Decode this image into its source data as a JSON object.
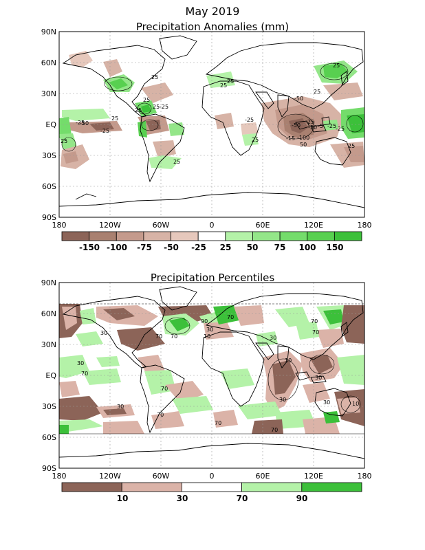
{
  "header": {
    "title": "May 2019"
  },
  "panels": [
    {
      "title": "Precipitation Anomalies (mm)",
      "lat_labels": [
        "90N",
        "60N",
        "30N",
        "EQ",
        "30S",
        "60S",
        "90S"
      ],
      "lon_labels": [
        "180",
        "120W",
        "60W",
        "0",
        "60E",
        "120E",
        "180"
      ],
      "colorbar": {
        "colors": [
          "#8c6458",
          "#a98070",
          "#c49a8c",
          "#d7b3a6",
          "#e6c8bc",
          "#ffffff",
          "#b4f2a8",
          "#94e689",
          "#74dc6b",
          "#58d050",
          "#3cc03a"
        ],
        "labels": [
          "-150",
          "-100",
          "-75",
          "-50",
          "-25",
          "25",
          "50",
          "75",
          "100",
          "150"
        ]
      },
      "contour_labels": [
        "25",
        "25",
        "25",
        "-25",
        "25",
        "-25",
        "25",
        "25",
        "-50",
        "-25",
        "25",
        "25",
        "25",
        "-50",
        "-25",
        "25",
        "-50",
        "-25",
        "-50",
        "-5",
        "-25",
        "-15",
        "-100",
        "50",
        "25",
        "25",
        "-25",
        "25"
      ]
    },
    {
      "title": "Precipitation Percentiles",
      "lat_labels": [
        "90N",
        "60N",
        "30N",
        "EQ",
        "30S",
        "60S",
        "90S"
      ],
      "lon_labels": [
        "180",
        "120W",
        "60W",
        "0",
        "60E",
        "120E",
        "180"
      ],
      "colorbar": {
        "colors": [
          "#8c6458",
          "#dbb3a8",
          "#ffffff",
          "#b4f2a8",
          "#3cc03a"
        ],
        "labels": [
          "10",
          "30",
          "70",
          "90"
        ]
      },
      "contour_labels": [
        "30",
        "70",
        "70",
        "30",
        "70",
        "70",
        "30",
        "70",
        "90",
        "70",
        "30",
        "10",
        "70",
        "30",
        "70",
        "10",
        "30",
        "70",
        "30",
        "70",
        "30",
        "10"
      ]
    }
  ]
}
